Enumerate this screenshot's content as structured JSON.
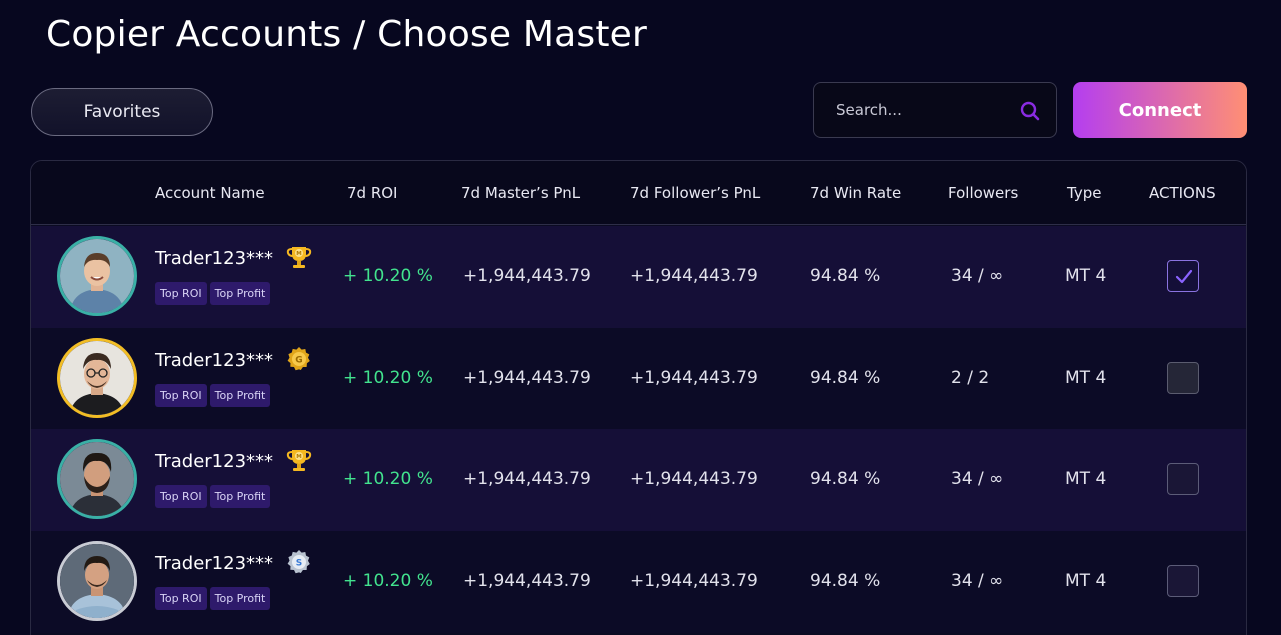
{
  "page": {
    "title": "Copier Accounts / Choose Master"
  },
  "toolbar": {
    "favorites_label": "Favorites",
    "search_placeholder": "Search...",
    "search_value": "",
    "connect_label": "Connect"
  },
  "table": {
    "headers": [
      "Account Name",
      "7d ROI",
      "7d Master’s PnL",
      "7d Follower’s PnL",
      "7d Win Rate",
      "Followers",
      "Type",
      "ACTIONS"
    ],
    "rows": [
      {
        "avatar_style": "teal",
        "avatar_icon": "avatar-man-smiling",
        "name": "Trader123***",
        "badge_icon": "trophy-icon",
        "badge_letter": "M",
        "tags": [
          "Top ROI",
          "Top Profit"
        ],
        "roi": "+ 10.20 %",
        "master_pnl": "+1,944,443.79",
        "follower_pnl": "+1,944,443.79",
        "win_rate": "94.84 %",
        "followers": "34 / ∞",
        "type": "MT 4",
        "selected": true
      },
      {
        "avatar_style": "gold",
        "avatar_icon": "avatar-man-glasses",
        "name": "Trader123***",
        "badge_icon": "gold-medal-icon",
        "badge_letter": "G",
        "tags": [
          "Top ROI",
          "Top Profit"
        ],
        "roi": "+ 10.20 %",
        "master_pnl": "+1,944,443.79",
        "follower_pnl": "+1,944,443.79",
        "win_rate": "94.84 %",
        "followers": "2 / 2",
        "type": "MT 4",
        "selected": false
      },
      {
        "avatar_style": "teal",
        "avatar_icon": "avatar-man-beard",
        "name": "Trader123***",
        "badge_icon": "trophy-icon",
        "badge_letter": "M",
        "tags": [
          "Top ROI",
          "Top Profit"
        ],
        "roi": "+ 10.20 %",
        "master_pnl": "+1,944,443.79",
        "follower_pnl": "+1,944,443.79",
        "win_rate": "94.84 %",
        "followers": "34 / ∞",
        "type": "MT 4",
        "selected": false
      },
      {
        "avatar_style": "grey",
        "avatar_icon": "avatar-man-arms-crossed",
        "name": "Trader123***",
        "badge_icon": "silver-medal-icon",
        "badge_letter": "S",
        "tags": [
          "Top ROI",
          "Top Profit"
        ],
        "roi": "+ 10.20 %",
        "master_pnl": "+1,944,443.79",
        "follower_pnl": "+1,944,443.79",
        "win_rate": "94.84 %",
        "followers": "34 / ∞",
        "type": "MT 4",
        "selected": false
      }
    ]
  },
  "colors": {
    "background": "#07071f",
    "roi_positive": "#42e38e",
    "tag_bg": "#2e1a6b",
    "accent_purple": "#8a2be2",
    "connect_gradient_start": "#b43ef0",
    "connect_gradient_end": "#ff8f74"
  }
}
